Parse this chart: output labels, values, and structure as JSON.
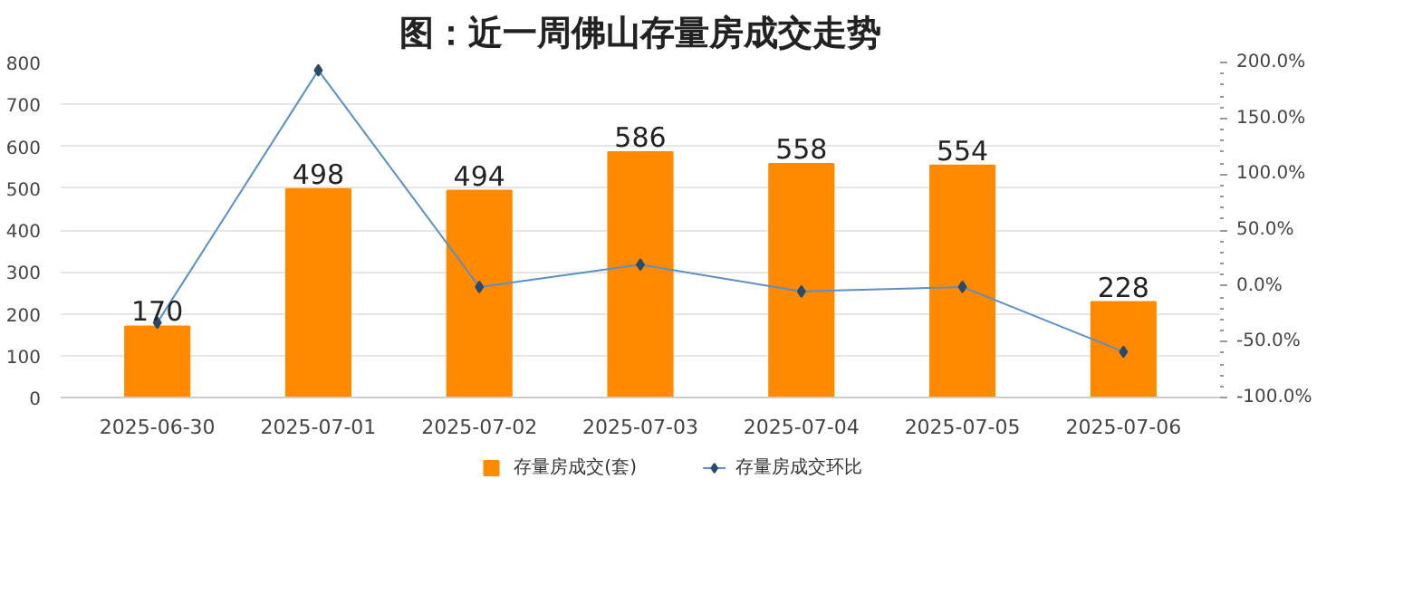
{
  "chart_data": {
    "type": "bar",
    "title": "图：近一周佛山存量房成交走势",
    "categories": [
      "2025-06-30",
      "2025-07-01",
      "2025-07-02",
      "2025-07-03",
      "2025-07-04",
      "2025-07-05",
      "2025-07-06"
    ],
    "series": [
      {
        "name": "存量房成交(套)",
        "color": "#ff8a00",
        "values": [
          170,
          498,
          494,
          586,
          558,
          554,
          228
        ],
        "value_labels": [
          "170",
          "498",
          "494",
          "586",
          "558",
          "554",
          "228"
        ]
      },
      {
        "name": "存量房成交环比",
        "type": "line",
        "axis": "y2",
        "color": "#5b8fc7",
        "marker": "diamond",
        "values": [
          -33,
          193,
          -1,
          19,
          -5,
          -1,
          -59
        ]
      }
    ],
    "ylim": [
      0,
      800
    ],
    "yticks": [
      0,
      100,
      200,
      300,
      400,
      500,
      600,
      700,
      800
    ],
    "y2lim": [
      -100,
      200
    ],
    "y2ticks": [
      {
        "value": -100,
        "label": "-100.0%"
      },
      {
        "value": -50,
        "label": "-50.0%"
      },
      {
        "value": 0,
        "label": "0.0%"
      },
      {
        "value": 50,
        "label": "50.0%"
      },
      {
        "value": 100,
        "label": "100.0%"
      },
      {
        "value": 150,
        "label": "150.0%"
      },
      {
        "value": 200,
        "label": "200.0%"
      }
    ],
    "grid": "y",
    "legend": "bottom"
  }
}
